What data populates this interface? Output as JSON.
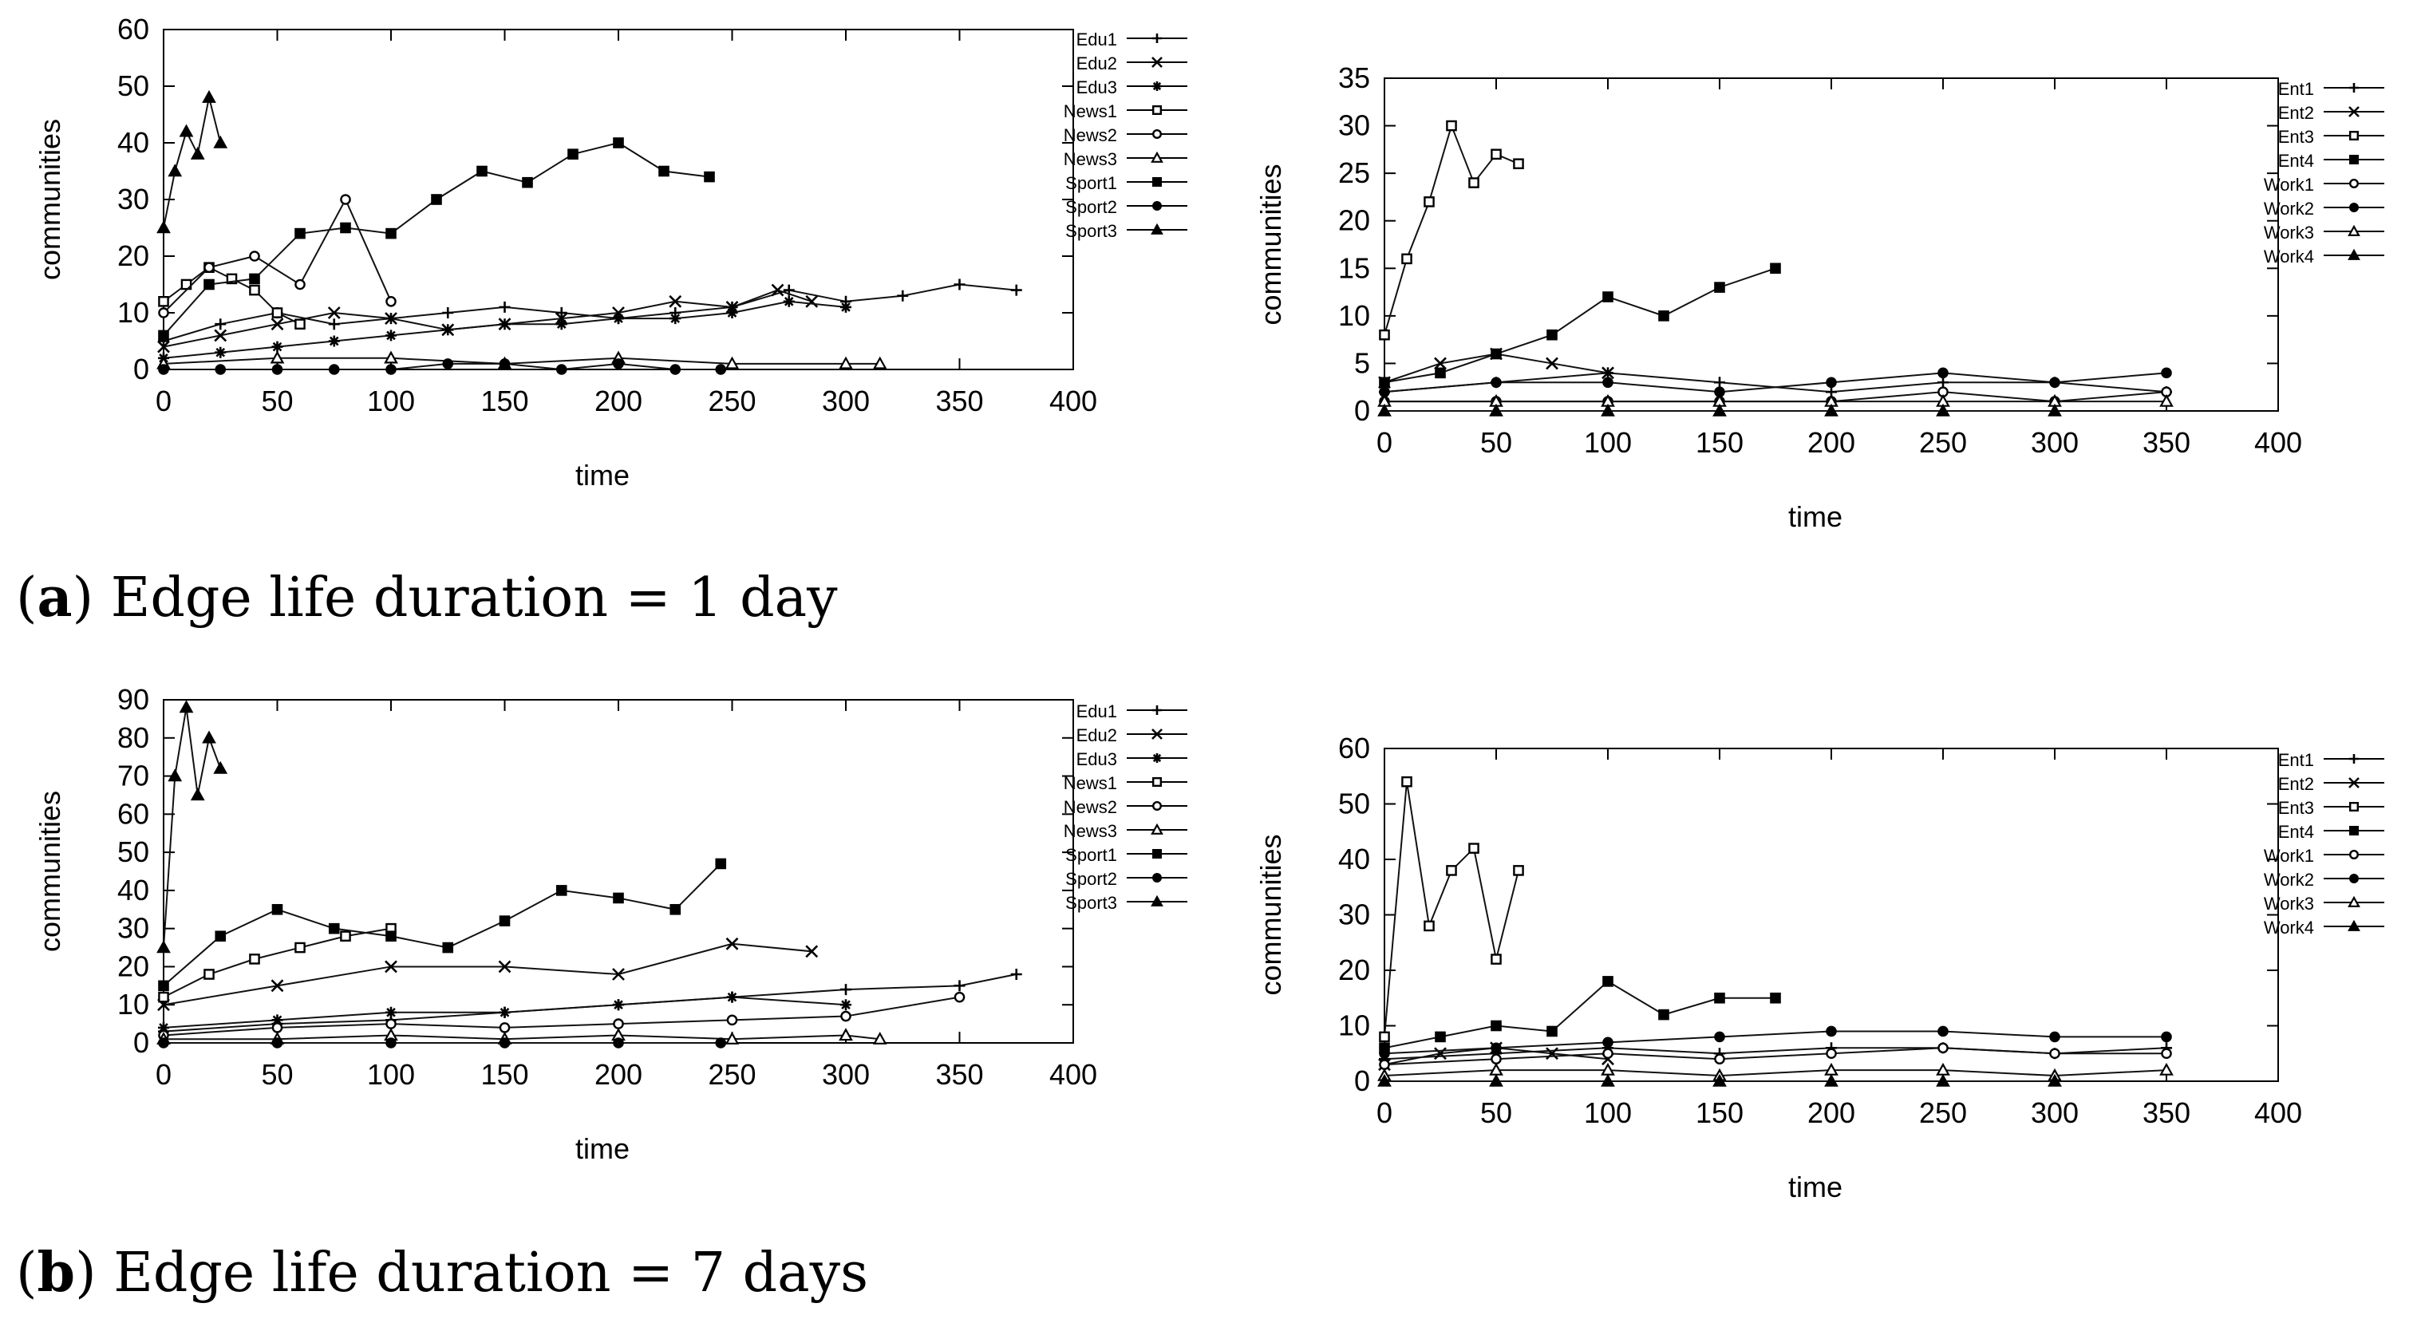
{
  "captions": {
    "a": {
      "letter": "a",
      "text": "Edge life duration = 1 day"
    },
    "b": {
      "letter": "b",
      "text": "Edge life duration = 7 days"
    }
  },
  "chart_data": [
    {
      "id": "a-left",
      "type": "line",
      "xlabel": "time",
      "ylabel": "communities",
      "xlim": [
        0,
        400
      ],
      "ylim": [
        0,
        60
      ],
      "xticks": [
        0,
        50,
        100,
        150,
        200,
        250,
        300,
        350,
        400
      ],
      "yticks": [
        0,
        10,
        20,
        30,
        40,
        50,
        60
      ],
      "legend_position": "right",
      "series": [
        {
          "name": "Edu1",
          "marker": "plus",
          "x": [
            0,
            25,
            50,
            75,
            100,
            125,
            150,
            175,
            200,
            225,
            250,
            275,
            300,
            325,
            350,
            375
          ],
          "values": [
            5,
            8,
            10,
            8,
            9,
            10,
            11,
            10,
            9,
            10,
            11,
            14,
            12,
            13,
            15,
            14
          ]
        },
        {
          "name": "Edu2",
          "marker": "cross",
          "x": [
            0,
            25,
            50,
            75,
            100,
            125,
            150,
            175,
            200,
            225,
            250,
            270,
            285
          ],
          "values": [
            4,
            6,
            8,
            10,
            9,
            7,
            8,
            9,
            10,
            12,
            11,
            14,
            12
          ]
        },
        {
          "name": "Edu3",
          "marker": "asterisk",
          "x": [
            0,
            25,
            50,
            75,
            100,
            125,
            150,
            175,
            200,
            225,
            250,
            275,
            300
          ],
          "values": [
            2,
            3,
            4,
            5,
            6,
            7,
            8,
            8,
            9,
            9,
            10,
            12,
            11
          ]
        },
        {
          "name": "News1",
          "marker": "square-open",
          "x": [
            0,
            10,
            20,
            30,
            40,
            50,
            60
          ],
          "values": [
            12,
            15,
            18,
            16,
            14,
            10,
            8
          ]
        },
        {
          "name": "News2",
          "marker": "circle-open",
          "x": [
            0,
            20,
            40,
            60,
            80,
            100
          ],
          "values": [
            10,
            18,
            20,
            15,
            30,
            12
          ]
        },
        {
          "name": "News3",
          "marker": "triangle-open",
          "x": [
            0,
            50,
            100,
            150,
            200,
            250,
            300,
            315
          ],
          "values": [
            1,
            2,
            2,
            1,
            2,
            1,
            1,
            1
          ]
        },
        {
          "name": "Sport1",
          "marker": "square-filled",
          "x": [
            0,
            20,
            40,
            60,
            80,
            100,
            120,
            140,
            160,
            180,
            200,
            220,
            240
          ],
          "values": [
            6,
            15,
            16,
            24,
            25,
            24,
            30,
            35,
            33,
            38,
            40,
            35,
            34
          ]
        },
        {
          "name": "Sport2",
          "marker": "circle-filled",
          "x": [
            0,
            25,
            50,
            75,
            100,
            125,
            150,
            175,
            200,
            225,
            245
          ],
          "values": [
            0,
            0,
            0,
            0,
            0,
            1,
            1,
            0,
            1,
            0,
            0
          ]
        },
        {
          "name": "Sport3",
          "marker": "triangle-filled",
          "x": [
            0,
            5,
            10,
            15,
            20,
            25
          ],
          "values": [
            25,
            35,
            42,
            38,
            48,
            40
          ]
        }
      ]
    },
    {
      "id": "a-right",
      "type": "line",
      "xlabel": "time",
      "ylabel": "communities",
      "xlim": [
        0,
        400
      ],
      "ylim": [
        0,
        35
      ],
      "xticks": [
        0,
        50,
        100,
        150,
        200,
        250,
        300,
        350,
        400
      ],
      "yticks": [
        0,
        5,
        10,
        15,
        20,
        25,
        30,
        35
      ],
      "legend_position": "right",
      "series": [
        {
          "name": "Ent1",
          "marker": "plus",
          "x": [
            0,
            50,
            100,
            150,
            200,
            250,
            300,
            350
          ],
          "values": [
            2,
            3,
            4,
            3,
            2,
            3,
            3,
            2
          ]
        },
        {
          "name": "Ent2",
          "marker": "cross",
          "x": [
            0,
            25,
            50,
            75,
            100
          ],
          "values": [
            3,
            5,
            6,
            5,
            4
          ]
        },
        {
          "name": "Ent3",
          "marker": "square-open",
          "x": [
            0,
            10,
            20,
            30,
            40,
            50,
            60
          ],
          "values": [
            8,
            16,
            22,
            30,
            24,
            27,
            26
          ]
        },
        {
          "name": "Ent4",
          "marker": "square-filled",
          "x": [
            0,
            25,
            50,
            75,
            100,
            125,
            150,
            175
          ],
          "values": [
            3,
            4,
            6,
            8,
            12,
            10,
            13,
            15
          ]
        },
        {
          "name": "Work1",
          "marker": "circle-open",
          "x": [
            0,
            50,
            100,
            150,
            200,
            250,
            300,
            350
          ],
          "values": [
            1,
            1,
            1,
            1,
            1,
            2,
            1,
            2
          ]
        },
        {
          "name": "Work2",
          "marker": "circle-filled",
          "x": [
            0,
            50,
            100,
            150,
            200,
            250,
            300,
            350
          ],
          "values": [
            2,
            3,
            3,
            2,
            3,
            4,
            3,
            4
          ]
        },
        {
          "name": "Work3",
          "marker": "triangle-open",
          "x": [
            0,
            50,
            100,
            150,
            200,
            250,
            300,
            350
          ],
          "values": [
            1,
            1,
            1,
            1,
            1,
            1,
            1,
            1
          ]
        },
        {
          "name": "Work4",
          "marker": "triangle-filled",
          "x": [
            0,
            50,
            100,
            150,
            200,
            250,
            300
          ],
          "values": [
            0,
            0,
            0,
            0,
            0,
            0,
            0
          ]
        }
      ]
    },
    {
      "id": "b-left",
      "type": "line",
      "xlabel": "time",
      "ylabel": "communities",
      "xlim": [
        0,
        400
      ],
      "ylim": [
        0,
        90
      ],
      "xticks": [
        0,
        50,
        100,
        150,
        200,
        250,
        300,
        350,
        400
      ],
      "yticks": [
        0,
        10,
        20,
        30,
        40,
        50,
        60,
        70,
        80,
        90
      ],
      "legend_position": "right",
      "series": [
        {
          "name": "Edu1",
          "marker": "plus",
          "x": [
            0,
            50,
            100,
            150,
            200,
            250,
            300,
            350,
            375
          ],
          "values": [
            3,
            5,
            6,
            8,
            10,
            12,
            14,
            15,
            18
          ]
        },
        {
          "name": "Edu2",
          "marker": "cross",
          "x": [
            0,
            50,
            100,
            150,
            200,
            250,
            285
          ],
          "values": [
            10,
            15,
            20,
            20,
            18,
            26,
            24
          ]
        },
        {
          "name": "Edu3",
          "marker": "asterisk",
          "x": [
            0,
            50,
            100,
            150,
            200,
            250,
            300
          ],
          "values": [
            4,
            6,
            8,
            8,
            10,
            12,
            10
          ]
        },
        {
          "name": "News1",
          "marker": "square-open",
          "x": [
            0,
            20,
            40,
            60,
            80,
            100
          ],
          "values": [
            12,
            18,
            22,
            25,
            28,
            30
          ]
        },
        {
          "name": "News2",
          "marker": "circle-open",
          "x": [
            0,
            50,
            100,
            150,
            200,
            250,
            300,
            350
          ],
          "values": [
            2,
            4,
            5,
            4,
            5,
            6,
            7,
            12
          ]
        },
        {
          "name": "News3",
          "marker": "triangle-open",
          "x": [
            0,
            50,
            100,
            150,
            200,
            250,
            300,
            315
          ],
          "values": [
            1,
            1,
            2,
            1,
            2,
            1,
            2,
            1
          ]
        },
        {
          "name": "Sport1",
          "marker": "square-filled",
          "x": [
            0,
            25,
            50,
            75,
            100,
            125,
            150,
            175,
            200,
            225,
            245
          ],
          "values": [
            15,
            28,
            35,
            30,
            28,
            25,
            32,
            40,
            38,
            35,
            47
          ]
        },
        {
          "name": "Sport2",
          "marker": "circle-filled",
          "x": [
            0,
            50,
            100,
            150,
            200,
            245
          ],
          "values": [
            0,
            0,
            0,
            0,
            0,
            0
          ]
        },
        {
          "name": "Sport3",
          "marker": "triangle-filled",
          "x": [
            0,
            5,
            10,
            15,
            20,
            25
          ],
          "values": [
            25,
            70,
            88,
            65,
            80,
            72
          ]
        }
      ]
    },
    {
      "id": "b-right",
      "type": "line",
      "xlabel": "time",
      "ylabel": "communities",
      "xlim": [
        0,
        400
      ],
      "ylim": [
        0,
        60
      ],
      "xticks": [
        0,
        50,
        100,
        150,
        200,
        250,
        300,
        350,
        400
      ],
      "yticks": [
        0,
        10,
        20,
        30,
        40,
        50,
        60
      ],
      "legend_position": "right",
      "series": [
        {
          "name": "Ent1",
          "marker": "plus",
          "x": [
            0,
            50,
            100,
            150,
            200,
            250,
            300,
            350
          ],
          "values": [
            4,
            5,
            6,
            5,
            6,
            6,
            5,
            6
          ]
        },
        {
          "name": "Ent2",
          "marker": "cross",
          "x": [
            0,
            25,
            50,
            75,
            100
          ],
          "values": [
            3,
            5,
            6,
            5,
            4
          ]
        },
        {
          "name": "Ent3",
          "marker": "square-open",
          "x": [
            0,
            10,
            20,
            30,
            40,
            50,
            60
          ],
          "values": [
            8,
            54,
            28,
            38,
            42,
            22,
            38
          ]
        },
        {
          "name": "Ent4",
          "marker": "square-filled",
          "x": [
            0,
            25,
            50,
            75,
            100,
            125,
            150,
            175
          ],
          "values": [
            6,
            8,
            10,
            9,
            18,
            12,
            15,
            15
          ]
        },
        {
          "name": "Work1",
          "marker": "circle-open",
          "x": [
            0,
            50,
            100,
            150,
            200,
            250,
            300,
            350
          ],
          "values": [
            3,
            4,
            5,
            4,
            5,
            6,
            5,
            5
          ]
        },
        {
          "name": "Work2",
          "marker": "circle-filled",
          "x": [
            0,
            50,
            100,
            150,
            200,
            250,
            300,
            350
          ],
          "values": [
            5,
            6,
            7,
            8,
            9,
            9,
            8,
            8
          ]
        },
        {
          "name": "Work3",
          "marker": "triangle-open",
          "x": [
            0,
            50,
            100,
            150,
            200,
            250,
            300,
            350
          ],
          "values": [
            1,
            2,
            2,
            1,
            2,
            2,
            1,
            2
          ]
        },
        {
          "name": "Work4",
          "marker": "triangle-filled",
          "x": [
            0,
            50,
            100,
            150,
            200,
            250,
            300
          ],
          "values": [
            0,
            0,
            0,
            0,
            0,
            0,
            0
          ]
        }
      ]
    }
  ]
}
